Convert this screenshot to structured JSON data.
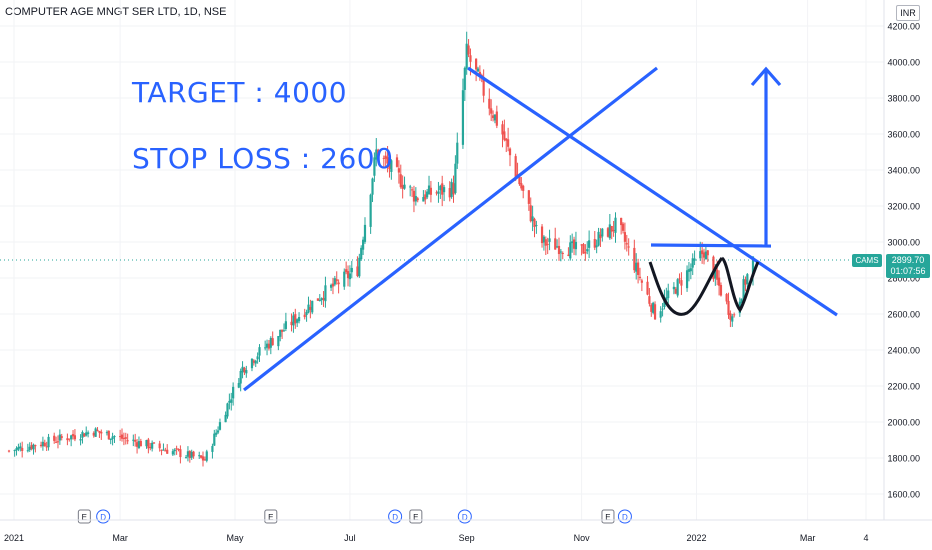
{
  "header": {
    "symbol_title": "COMPUTER AGE MNGT SER LTD, 1D, NSE",
    "currency": "INR"
  },
  "annotations": {
    "target": "TARGET : 4000",
    "stop_loss": "STOP LOSS : 2600"
  },
  "price_tag": {
    "symbol": "CAMS",
    "price": "2899.70",
    "countdown": "01:07:56"
  },
  "colors": {
    "up": "#26a69a",
    "down": "#ef5350",
    "drawing": "#2962ff",
    "pattern": "#131722",
    "price_line": "#26a69a"
  },
  "chart_data": {
    "type": "candlestick",
    "title": "COMPUTER AGE MNGT SER LTD, 1D, NSE",
    "x_tick_labels": [
      "2021",
      "Mar",
      "May",
      "Jul",
      "Sep",
      "Nov",
      "2022",
      "Mar",
      "4"
    ],
    "y_tick_labels": [
      "1600.00",
      "1800.00",
      "2000.00",
      "2200.00",
      "2400.00",
      "2600.00",
      "2800.00",
      "3000.00",
      "3200.00",
      "3400.00",
      "3600.00",
      "3800.00",
      "4000.00",
      "4200.00"
    ],
    "ylim": [
      1530,
      4290
    ],
    "last_price": 2899.7,
    "event_markers": [
      {
        "label": "E",
        "month": "Feb 2021"
      },
      {
        "label": "D",
        "month": "Feb 2021"
      },
      {
        "label": "E",
        "month": "May 2021"
      },
      {
        "label": "D",
        "month": "Jul 2021"
      },
      {
        "label": "E",
        "month": "Aug 2021"
      },
      {
        "label": "D",
        "month": "Sep 2021"
      },
      {
        "label": "E",
        "month": "Nov 2021"
      },
      {
        "label": "D",
        "month": "Nov 2021"
      }
    ],
    "price_path_approx": [
      {
        "date": "2021-01-01",
        "close": 1840
      },
      {
        "date": "2021-02-15",
        "close": 1950
      },
      {
        "date": "2021-04-15",
        "close": 1790
      },
      {
        "date": "2021-05-05",
        "close": 2300
      },
      {
        "date": "2021-06-15",
        "close": 2700
      },
      {
        "date": "2021-07-05",
        "close": 2850
      },
      {
        "date": "2021-07-15",
        "close": 3500
      },
      {
        "date": "2021-08-05",
        "close": 3250
      },
      {
        "date": "2021-08-25",
        "close": 3300
      },
      {
        "date": "2021-09-01",
        "close": 4050
      },
      {
        "date": "2021-09-20",
        "close": 3600
      },
      {
        "date": "2021-10-10",
        "close": 3000
      },
      {
        "date": "2021-11-01",
        "close": 2950
      },
      {
        "date": "2021-11-20",
        "close": 3100
      },
      {
        "date": "2021-12-10",
        "close": 2600
      },
      {
        "date": "2022-01-05",
        "close": 2950
      },
      {
        "date": "2022-01-20",
        "close": 2580
      },
      {
        "date": "2022-01-31",
        "close": 2899.7
      }
    ]
  }
}
